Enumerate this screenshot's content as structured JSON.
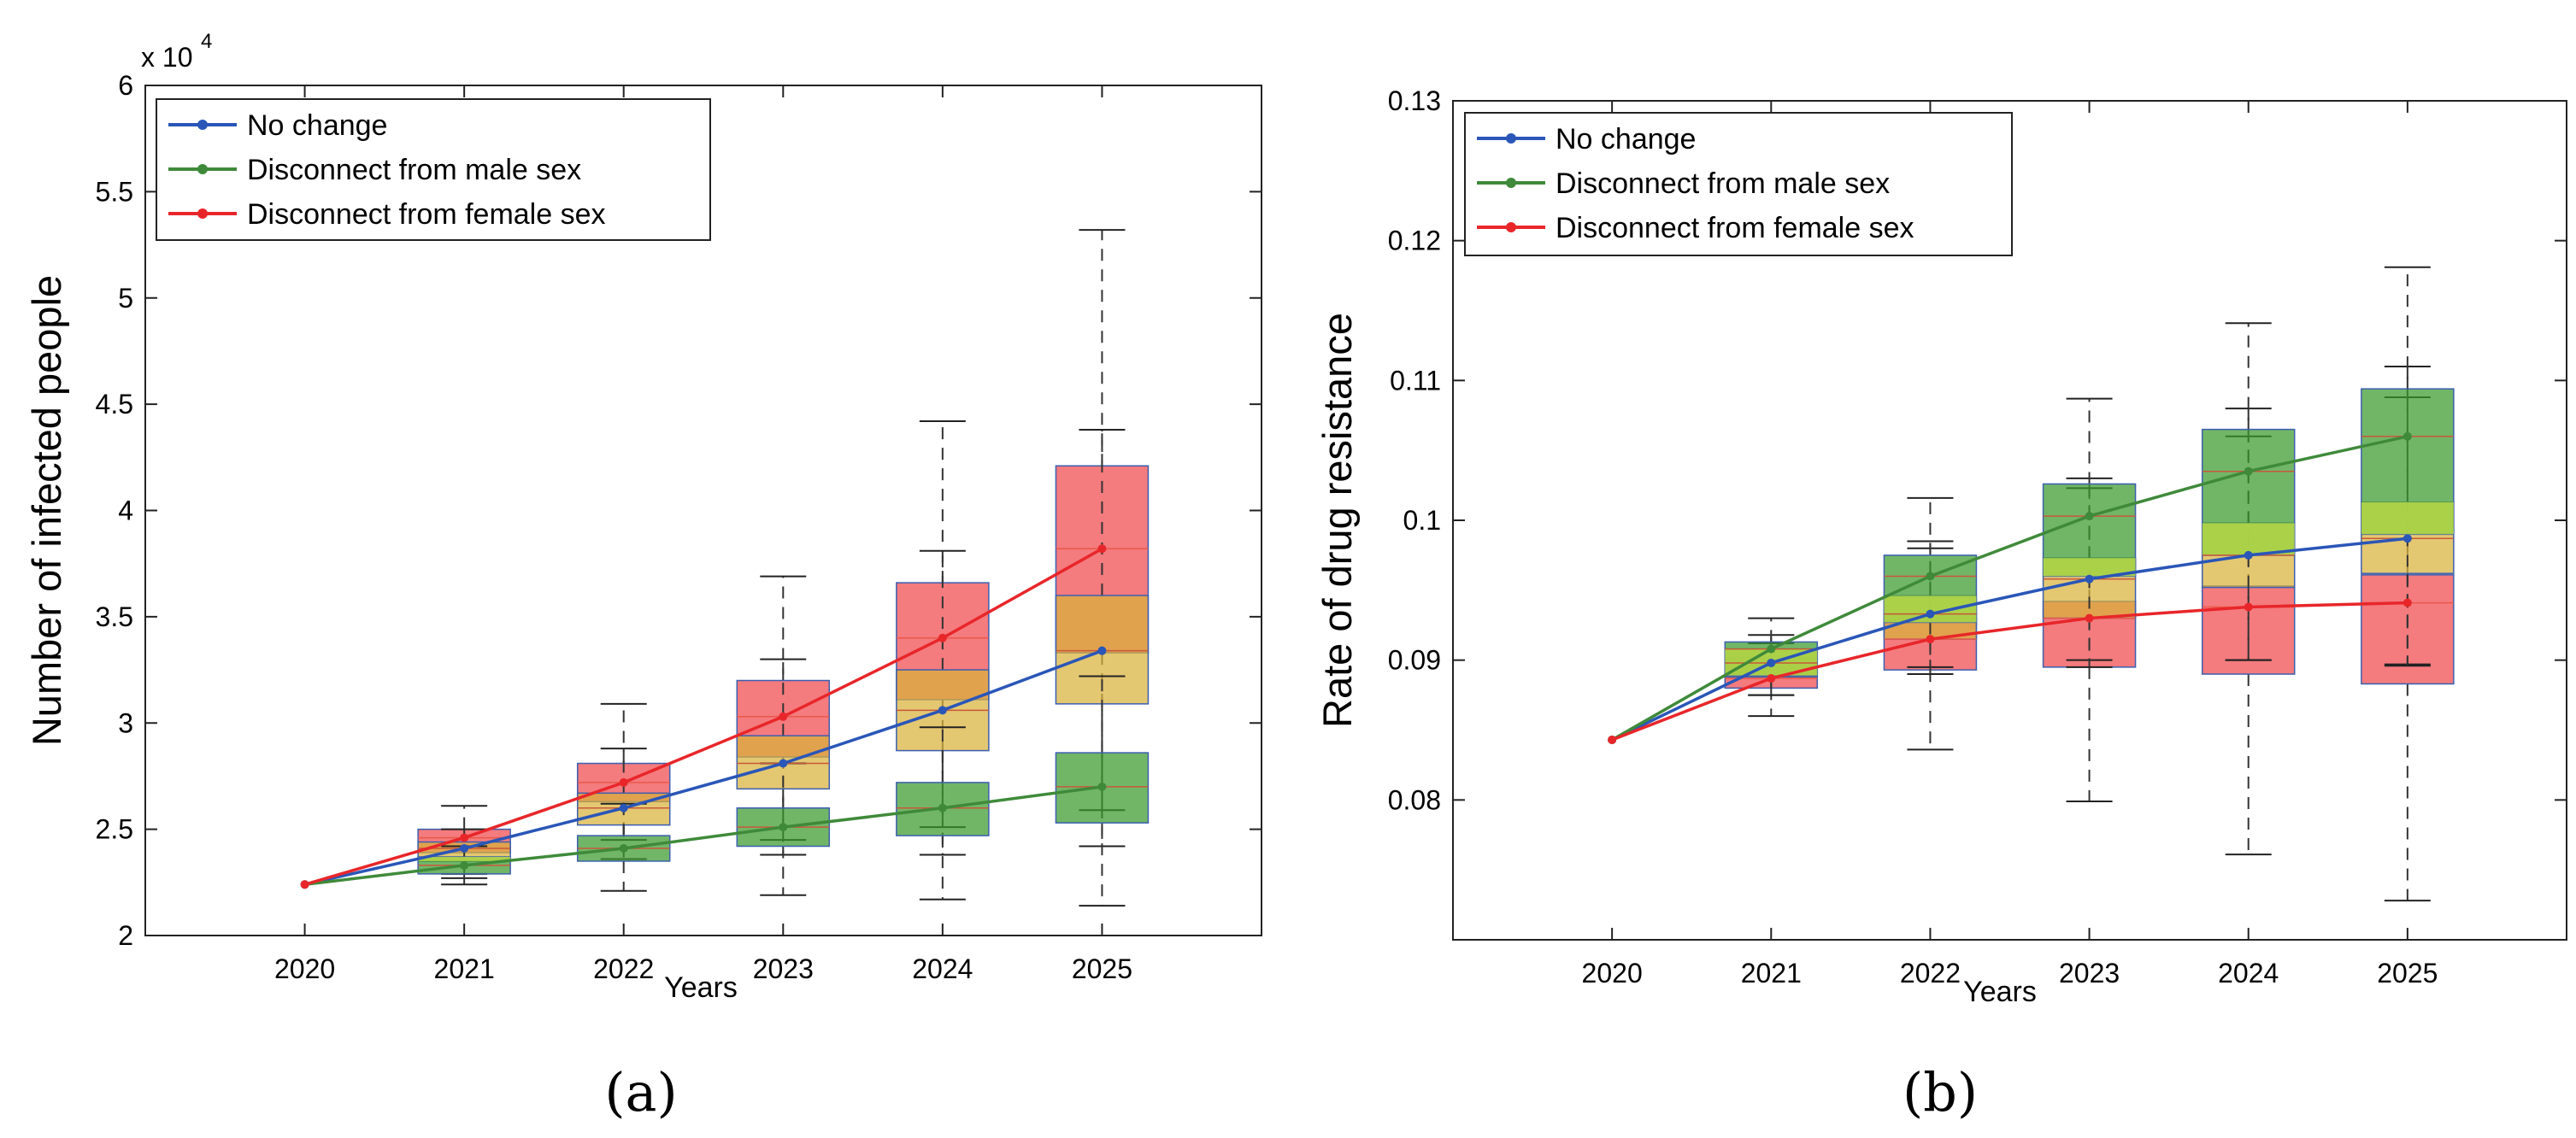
{
  "chart_data": [
    {
      "type": "line",
      "subtype": "line-with-boxplots",
      "caption": "(a)",
      "title": "",
      "xlabel": "Years",
      "ylabel": "Number of infected people",
      "y_exponent_label": "x 10",
      "y_exponent_power": "4",
      "x_ticks": [
        "2020",
        "2021",
        "2022",
        "2023",
        "2024",
        "2025"
      ],
      "y_ticks": [
        "2",
        "2.5",
        "3",
        "3.5",
        "4",
        "4.5",
        "5",
        "5.5",
        "6"
      ],
      "ylim": [
        2.0,
        6.0
      ],
      "grid": false,
      "legend_position": "top-left",
      "series": [
        {
          "name": "No change",
          "color": "#2a56b8",
          "values": [
            2.24,
            2.41,
            2.6,
            2.81,
            3.06,
            3.34
          ],
          "boxes": [
            null,
            {
              "q1": 2.35,
              "q3": 2.44,
              "whisker_low": 2.27,
              "whisker_high": 2.5
            },
            {
              "q1": 2.52,
              "q3": 2.67,
              "whisker_low": 2.36,
              "whisker_high": 2.88
            },
            {
              "q1": 2.69,
              "q3": 2.94,
              "whisker_low": 2.38,
              "whisker_high": 3.3
            },
            {
              "q1": 2.87,
              "q3": 3.25,
              "whisker_low": 2.38,
              "whisker_high": 3.81
            },
            {
              "q1": 3.09,
              "q3": 3.6,
              "whisker_low": 2.42,
              "whisker_high": 4.38
            }
          ]
        },
        {
          "name": "Disconnect from male sex",
          "color": "#3f8a3a",
          "values": [
            2.24,
            2.33,
            2.41,
            2.51,
            2.6,
            2.7
          ],
          "boxes": [
            null,
            {
              "q1": 2.29,
              "q3": 2.37,
              "whisker_low": 2.24,
              "whisker_high": 2.42
            },
            {
              "q1": 2.35,
              "q3": 2.47,
              "whisker_low": 2.21,
              "whisker_high": 2.62
            },
            {
              "q1": 2.42,
              "q3": 2.6,
              "whisker_low": 2.19,
              "whisker_high": 2.81
            },
            {
              "q1": 2.47,
              "q3": 2.72,
              "whisker_low": 2.17,
              "whisker_high": 2.98
            },
            {
              "q1": 2.53,
              "q3": 2.86,
              "whisker_low": 2.14,
              "whisker_high": 3.22
            }
          ]
        },
        {
          "name": "Disconnect from female sex",
          "color": "#e8262a",
          "values": [
            2.24,
            2.46,
            2.72,
            3.03,
            3.4,
            3.82
          ],
          "boxes": [
            null,
            {
              "q1": 2.39,
              "q3": 2.5,
              "whisker_low": 2.29,
              "whisker_high": 2.61
            },
            {
              "q1": 2.63,
              "q3": 2.81,
              "whisker_low": 2.45,
              "whisker_high": 3.09
            },
            {
              "q1": 2.84,
              "q3": 3.2,
              "whisker_low": 2.45,
              "whisker_high": 3.69
            },
            {
              "q1": 3.11,
              "q3": 3.66,
              "whisker_low": 2.51,
              "whisker_high": 4.42
            },
            {
              "q1": 3.33,
              "q3": 4.21,
              "whisker_low": 2.59,
              "whisker_high": 5.32
            }
          ]
        }
      ]
    },
    {
      "type": "line",
      "subtype": "line-with-boxplots",
      "caption": "(b)",
      "title": "",
      "xlabel": "Years",
      "ylabel": "Rate of drug resistance",
      "x_ticks": [
        "2020",
        "2021",
        "2022",
        "2023",
        "2024",
        "2025"
      ],
      "y_ticks": [
        "0.08",
        "0.09",
        "0.1",
        "0.11",
        "0.12",
        "0.13"
      ],
      "ylim": [
        0.07,
        0.13
      ],
      "grid": false,
      "legend_position": "top-left",
      "series": [
        {
          "name": "No change",
          "color": "#2a56b8",
          "values": [
            0.0843,
            0.0898,
            0.0933,
            0.0958,
            0.0975,
            0.0987
          ],
          "boxes": [
            null,
            {
              "q1": 0.0888,
              "q3": 0.0908,
              "whisker_low": 0.0875,
              "whisker_high": 0.0918
            },
            {
              "q1": 0.0915,
              "q3": 0.0946,
              "whisker_low": 0.0895,
              "whisker_high": 0.0985
            },
            {
              "q1": 0.093,
              "q3": 0.0973,
              "whisker_low": 0.09,
              "whisker_high": 0.103
            },
            {
              "q1": 0.0952,
              "q3": 0.0998,
              "whisker_low": 0.09,
              "whisker_high": 0.108
            },
            {
              "q1": 0.0962,
              "q3": 0.1013,
              "whisker_low": 0.0897,
              "whisker_high": 0.111
            }
          ]
        },
        {
          "name": "Disconnect from male sex",
          "color": "#3f8a3a",
          "values": [
            0.0843,
            0.0908,
            0.096,
            0.1003,
            0.1035,
            0.106
          ],
          "boxes": [
            null,
            {
              "q1": 0.0889,
              "q3": 0.0913,
              "whisker_low": 0.0875,
              "whisker_high": 0.093
            },
            {
              "q1": 0.0927,
              "q3": 0.0975,
              "whisker_low": 0.089,
              "whisker_high": 0.1016
            },
            {
              "q1": 0.096,
              "q3": 0.1026,
              "whisker_low": 0.0895,
              "whisker_high": 0.1087
            },
            {
              "q1": 0.0975,
              "q3": 0.1065,
              "whisker_low": 0.09,
              "whisker_high": 0.1141
            },
            {
              "q1": 0.099,
              "q3": 0.1094,
              "whisker_low": 0.0896,
              "whisker_high": 0.1181
            }
          ]
        },
        {
          "name": "Disconnect from female sex",
          "color": "#e8262a",
          "values": [
            0.0843,
            0.0887,
            0.0915,
            0.093,
            0.0938,
            0.0941
          ],
          "boxes": [
            null,
            {
              "q1": 0.088,
              "q3": 0.0902,
              "whisker_low": 0.086,
              "whisker_high": 0.0912
            },
            {
              "q1": 0.0893,
              "q3": 0.0933,
              "whisker_low": 0.0836,
              "whisker_high": 0.098
            },
            {
              "q1": 0.0895,
              "q3": 0.0942,
              "whisker_low": 0.0799,
              "whisker_high": 0.1023
            },
            {
              "q1": 0.089,
              "q3": 0.0953,
              "whisker_low": 0.0761,
              "whisker_high": 0.106
            },
            {
              "q1": 0.0883,
              "q3": 0.0961,
              "whisker_low": 0.0728,
              "whisker_high": 0.1088
            }
          ]
        }
      ]
    }
  ],
  "box_fill_colors": {
    "No change": "#d9b13a",
    "Disconnect from male sex": "#3a9a2c",
    "Disconnect from female sex": "#f0484c",
    "overlap_light_green": "#b6d84a"
  }
}
